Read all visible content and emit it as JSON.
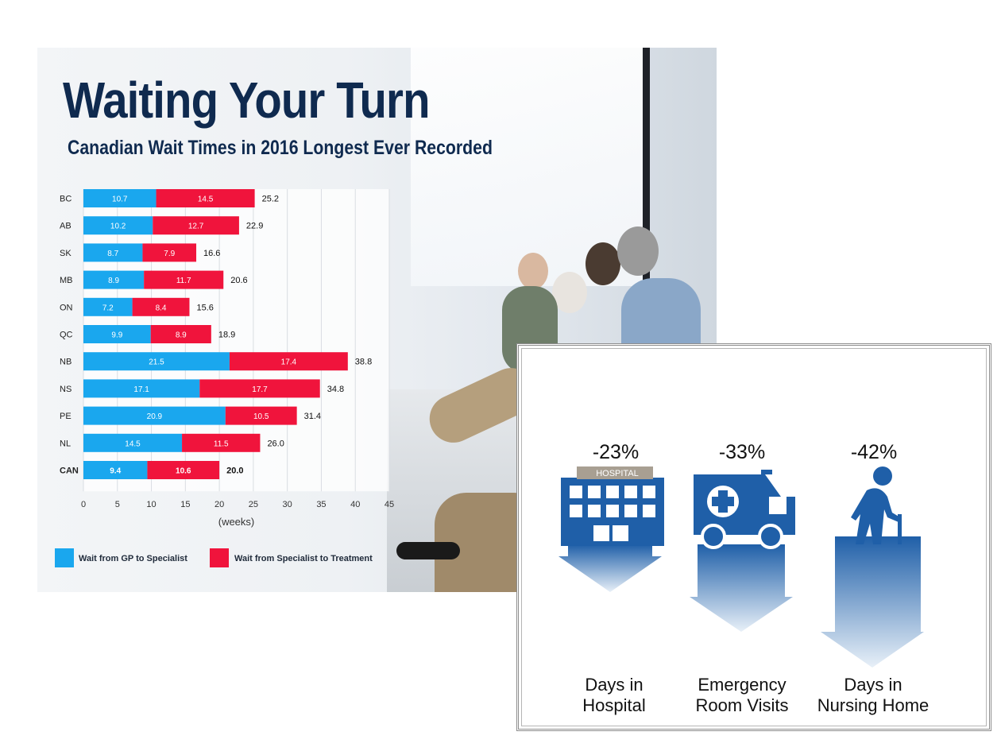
{
  "infographic": {
    "title": "Waiting Your Turn",
    "subtitle": "Canadian Wait Times in 2016 Longest Ever Recorded",
    "legend": [
      {
        "label": "Wait from GP to Specialist",
        "color": "#1aa7ee"
      },
      {
        "label": "Wait from Specialist to Treatment",
        "color": "#f0143c"
      }
    ]
  },
  "chart_data": {
    "type": "bar",
    "orientation": "horizontal-stacked",
    "categories": [
      "BC",
      "AB",
      "SK",
      "MB",
      "ON",
      "QC",
      "NB",
      "NS",
      "PE",
      "NL",
      "CAN"
    ],
    "series": [
      {
        "name": "Wait from GP to Specialist",
        "color": "#1aa7ee",
        "values": [
          10.7,
          10.2,
          8.7,
          8.9,
          7.2,
          9.9,
          21.5,
          17.1,
          20.9,
          14.5,
          9.4
        ]
      },
      {
        "name": "Wait from Specialist to Treatment",
        "color": "#f0143c",
        "values": [
          14.5,
          12.7,
          7.9,
          11.7,
          8.4,
          8.9,
          17.4,
          17.7,
          10.5,
          11.5,
          10.6
        ]
      }
    ],
    "totals": [
      "25.2",
      "22.9",
      "16.6",
      "20.6",
      "15.6",
      "18.9",
      "38.8",
      "34.8",
      "31.4",
      "26.0",
      "20.0"
    ],
    "xlabel": "(weeks)",
    "ylabel": "",
    "xlim": [
      0,
      45
    ],
    "xticks": [
      "0",
      "5",
      "10",
      "15",
      "20",
      "25",
      "30",
      "35",
      "40",
      "45"
    ],
    "grid": true,
    "legend_position": "bottom"
  },
  "panel": {
    "items": [
      {
        "stat": "-23%",
        "caption_line1": "Days in",
        "caption_line2": "Hospital",
        "icon": "hospital-icon",
        "sign_text": "HOSPITAL"
      },
      {
        "stat": "-33%",
        "caption_line1": "Emergency",
        "caption_line2": "Room Visits",
        "icon": "ambulance-icon"
      },
      {
        "stat": "-42%",
        "caption_line1": "Days in",
        "caption_line2": "Nursing Home",
        "icon": "elderly-person-icon"
      }
    ],
    "colors": {
      "icon": "#1f5fa8",
      "arrow_top": "#1f5fa8",
      "arrow_bottom": "#e8f0f8"
    }
  }
}
